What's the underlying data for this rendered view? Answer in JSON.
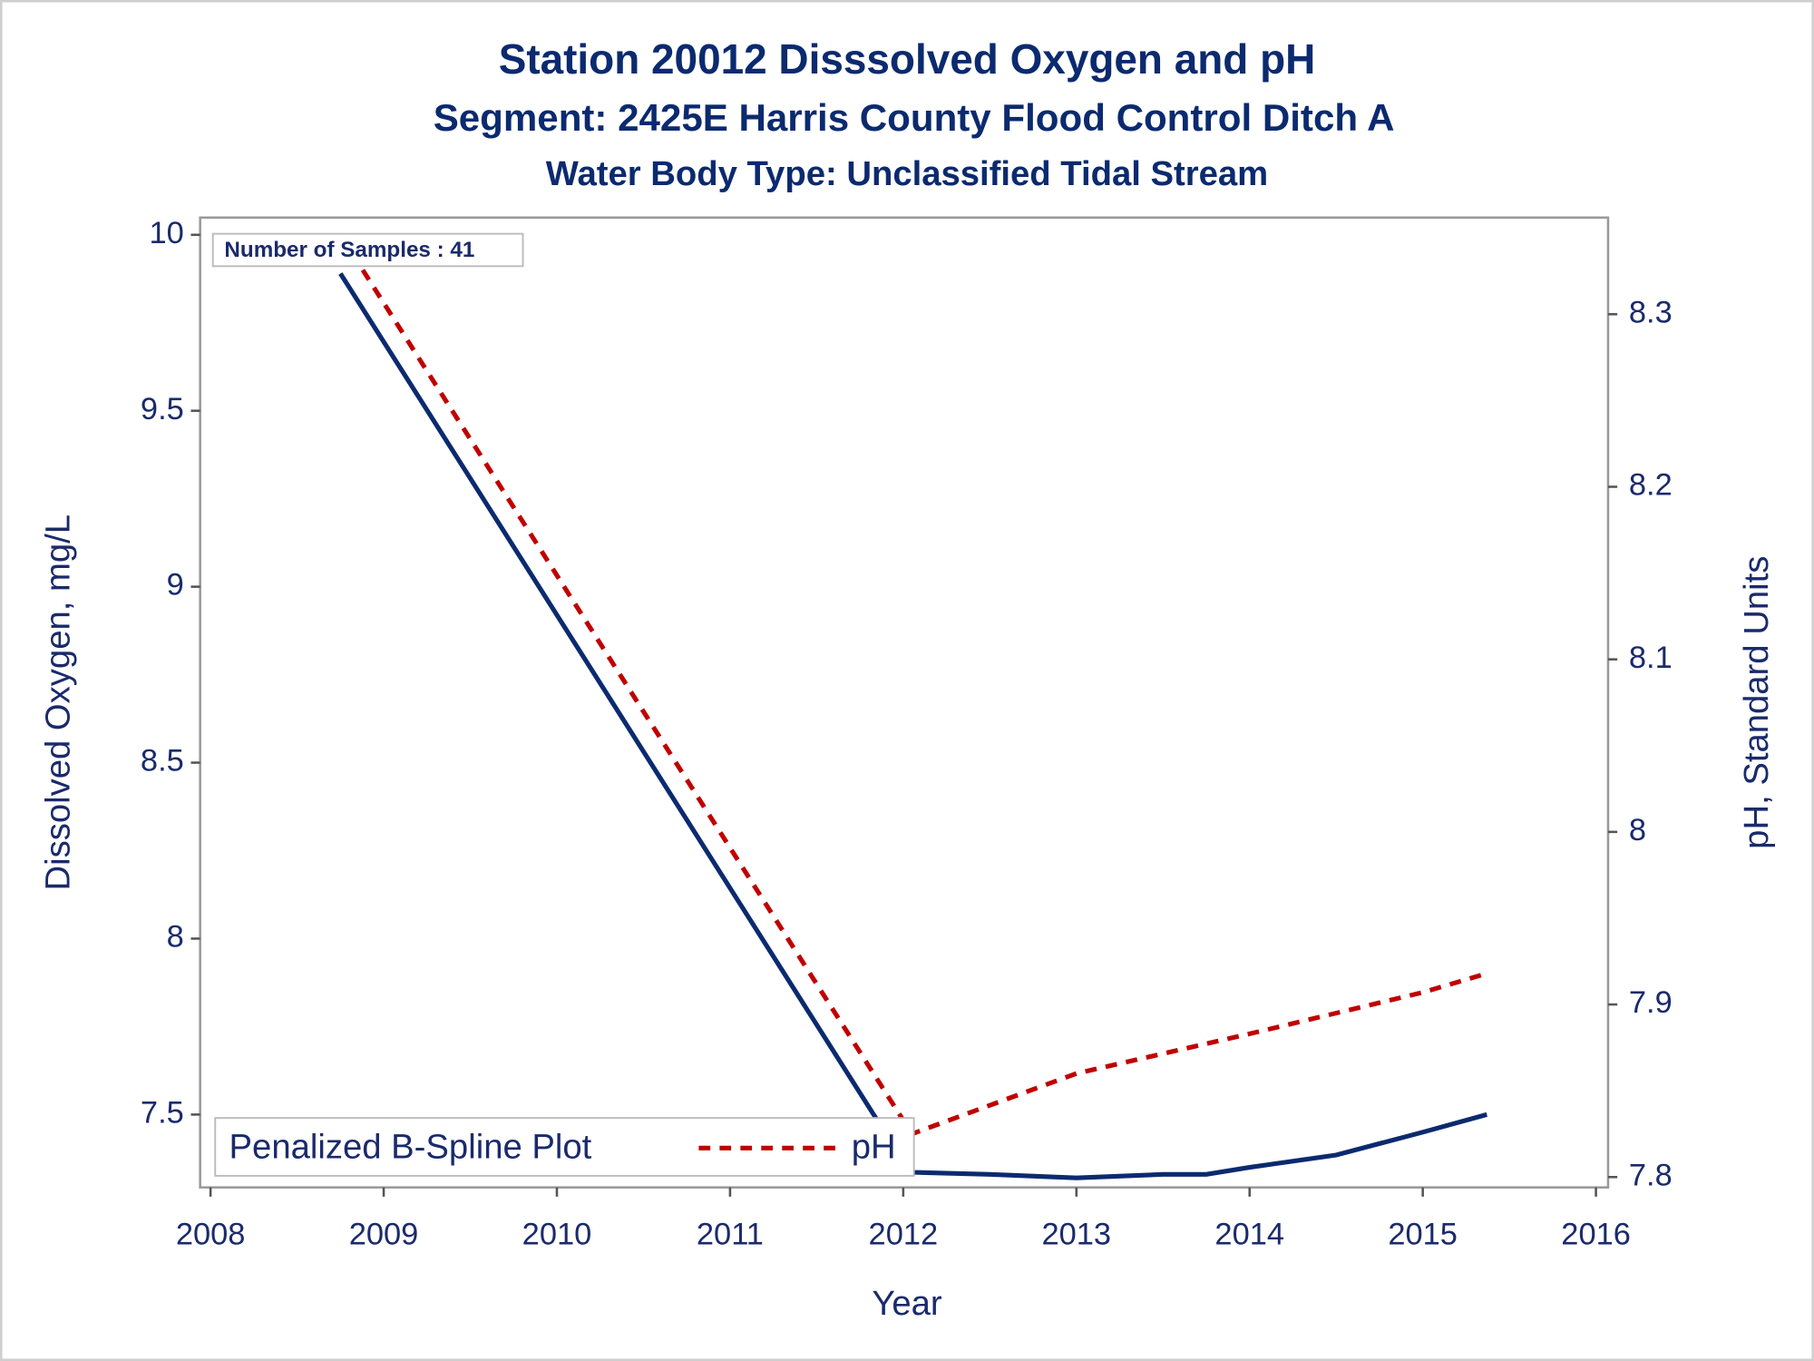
{
  "chart_data": {
    "type": "line",
    "title": "Station 20012   Disssolved Oxygen and pH",
    "subtitle": "Segment: 2425E  Harris County Flood Control Ditch A",
    "subtitle2": "Water Body Type: Unclassified Tidal Stream",
    "annotation": "Number of Samples : 41",
    "x_label": "Year",
    "y_label": "Dissolved Oxygen, mg/L",
    "y2_label": "pH, Standard Units",
    "legend_title": "Penalized B-Spline Plot",
    "legend": "lower left",
    "xlim": [
      2007.94,
      2016.07
    ],
    "xticks": [
      2008,
      2009,
      2010,
      2011,
      2012,
      2013,
      2014,
      2015,
      2016
    ],
    "ylim": [
      7.293,
      10.049
    ],
    "yticks": [
      {
        "value": 7.5,
        "label": "7.5"
      },
      8,
      {
        "value": 8.5,
        "label": "8.5"
      },
      9,
      {
        "value": 9.5,
        "label": "9.5"
      },
      10
    ],
    "y2lim": [
      7.794,
      8.356
    ],
    "y2ticks": [
      {
        "value": 7.8,
        "label": "7.8"
      },
      {
        "value": 7.9,
        "label": "7.9"
      },
      8,
      {
        "value": 8.1,
        "label": "8.1"
      },
      {
        "value": 8.2,
        "label": "8.2"
      },
      {
        "value": 8.3,
        "label": "8.3"
      }
    ],
    "series": [
      {
        "color": "#0b2a6f",
        "line_style": "solid",
        "x": [
          2008.75,
          2011.9,
          2012.05,
          2012.5,
          2013,
          2013.5,
          2013.75,
          2014,
          2014.5,
          2015,
          2015.37
        ],
        "values": [
          9.89,
          7.445,
          7.336,
          7.33,
          7.32,
          7.33,
          7.33,
          7.35,
          7.385,
          7.45,
          7.5
        ]
      },
      {
        "name": "pH",
        "color": "#c00000",
        "line_style": "dashed",
        "axis": "y2",
        "x": [
          2008.75,
          2012.05,
          2013,
          2014,
          2015,
          2015.37
        ],
        "values": [
          8.346,
          7.825,
          7.86,
          7.883,
          7.907,
          7.918
        ]
      }
    ]
  }
}
